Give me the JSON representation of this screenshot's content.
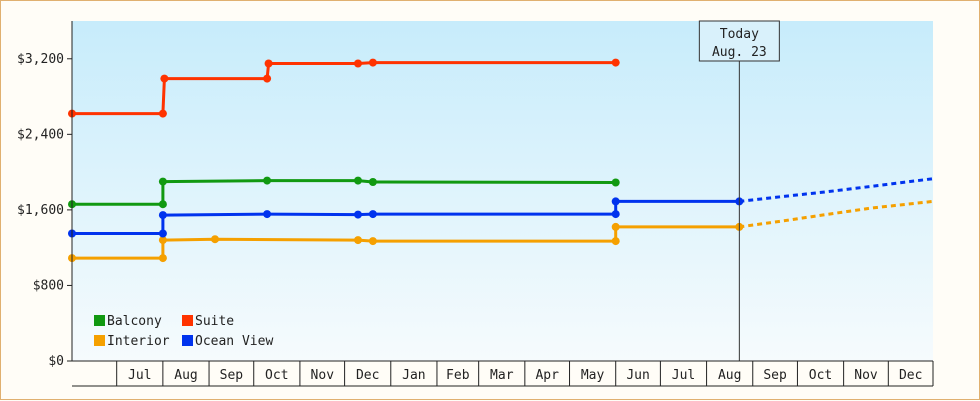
{
  "chart_data": {
    "type": "line",
    "title": "",
    "xlabel": "",
    "ylabel": "",
    "step": true,
    "ylim": [
      0,
      3600
    ],
    "y_ticks": [
      0,
      800,
      1600,
      2400,
      3200
    ],
    "y_tick_labels": [
      "$0",
      "$800",
      "$1,600",
      "$2,400",
      "$3,200"
    ],
    "x_range": [
      "2018-06-01",
      "2019-12-31"
    ],
    "x_tick_labels": [
      "Jul",
      "Aug",
      "Sep",
      "Oct",
      "Nov",
      "Dec",
      "Jan",
      "Feb",
      "Mar",
      "Apr",
      "May",
      "Jun",
      "Jul",
      "Aug",
      "Sep",
      "Oct",
      "Nov",
      "Dec"
    ],
    "grid": false,
    "legend_position": "bottom-left",
    "colors": {
      "plot_top": "#c7ecfb",
      "plot_bottom": "#f6fbfd",
      "axis": "#222222"
    },
    "today": {
      "date": "2019-08-23",
      "label_line1": "Today",
      "label_line2": "Aug. 23"
    },
    "series": [
      {
        "name": "Balcony",
        "color": "#119911",
        "points": [
          [
            "2018-06-01",
            1660
          ],
          [
            "2018-08-01",
            1660
          ],
          [
            "2018-08-01",
            1900
          ],
          [
            "2018-10-10",
            1910
          ],
          [
            "2018-12-10",
            1910
          ],
          [
            "2018-12-20",
            1895
          ],
          [
            "2019-06-01",
            1890
          ]
        ],
        "forecast": []
      },
      {
        "name": "Suite",
        "color": "#ff3300",
        "points": [
          [
            "2018-06-01",
            2620
          ],
          [
            "2018-08-01",
            2620
          ],
          [
            "2018-08-02",
            2990
          ],
          [
            "2018-10-10",
            2990
          ],
          [
            "2018-10-11",
            3150
          ],
          [
            "2018-12-10",
            3150
          ],
          [
            "2018-12-20",
            3160
          ],
          [
            "2019-06-01",
            3160
          ]
        ],
        "forecast": []
      },
      {
        "name": "Interior",
        "color": "#f5a000",
        "points": [
          [
            "2018-06-01",
            1090
          ],
          [
            "2018-08-01",
            1090
          ],
          [
            "2018-08-01",
            1280
          ],
          [
            "2018-09-05",
            1290
          ],
          [
            "2018-12-10",
            1280
          ],
          [
            "2018-12-20",
            1270
          ],
          [
            "2019-06-01",
            1270
          ],
          [
            "2019-06-01",
            1420
          ],
          [
            "2019-08-23",
            1420
          ]
        ],
        "forecast": [
          [
            "2019-08-23",
            1420
          ],
          [
            "2019-09-20",
            1480
          ],
          [
            "2019-10-20",
            1550
          ],
          [
            "2019-11-20",
            1620
          ],
          [
            "2019-12-31",
            1690
          ]
        ]
      },
      {
        "name": "Ocean View",
        "color": "#0033ee",
        "points": [
          [
            "2018-06-01",
            1350
          ],
          [
            "2018-08-01",
            1350
          ],
          [
            "2018-08-01",
            1545
          ],
          [
            "2018-10-10",
            1555
          ],
          [
            "2018-12-10",
            1550
          ],
          [
            "2018-12-20",
            1555
          ],
          [
            "2019-06-01",
            1555
          ],
          [
            "2019-06-01",
            1690
          ],
          [
            "2019-08-23",
            1690
          ]
        ],
        "forecast": [
          [
            "2019-08-23",
            1690
          ],
          [
            "2019-09-20",
            1740
          ],
          [
            "2019-10-20",
            1790
          ],
          [
            "2019-11-20",
            1850
          ],
          [
            "2019-12-31",
            1930
          ]
        ]
      }
    ],
    "legend": [
      {
        "name": "Balcony",
        "color": "#119911"
      },
      {
        "name": "Suite",
        "color": "#ff3300"
      },
      {
        "name": "Interior",
        "color": "#f5a000"
      },
      {
        "name": "Ocean View",
        "color": "#0033ee"
      }
    ]
  }
}
